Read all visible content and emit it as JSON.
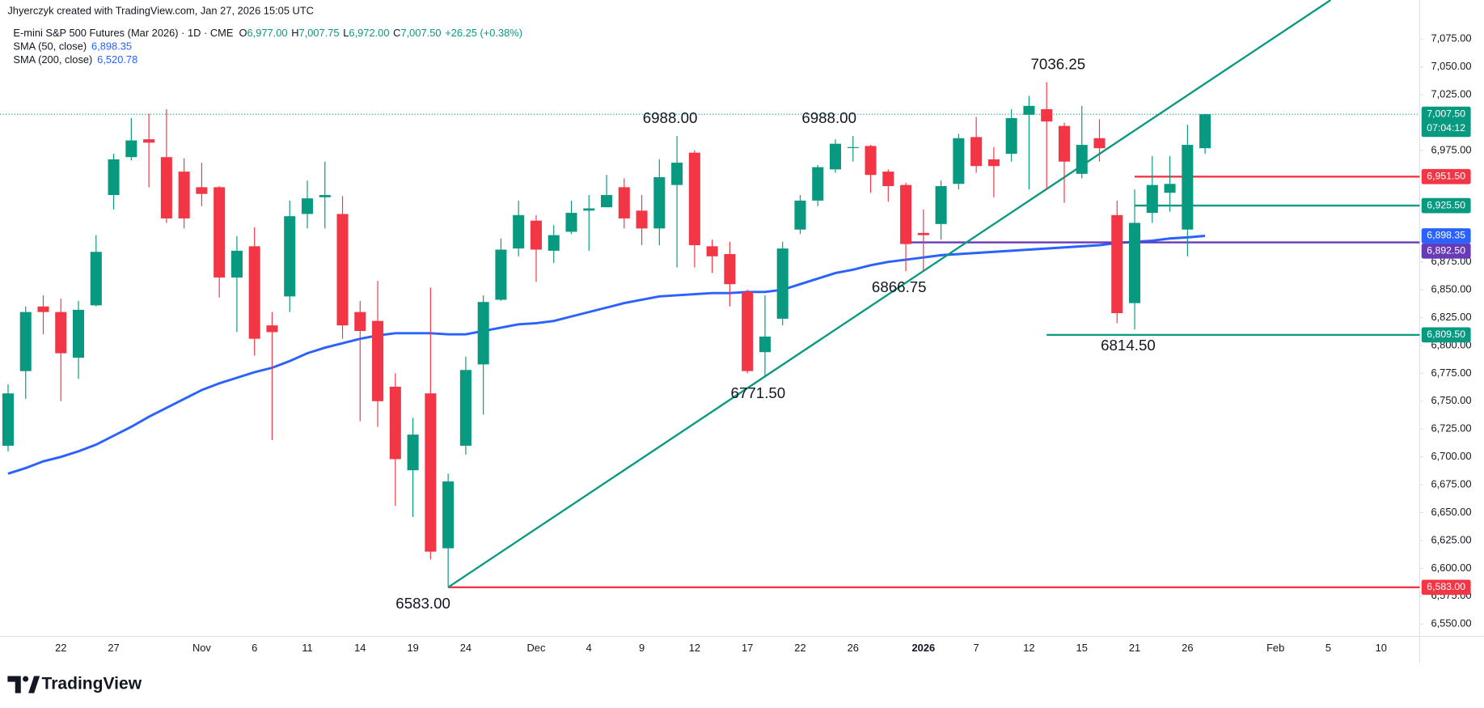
{
  "credit": "Jhyerczyk created with TradingView.com, Jan 27, 2026 15:05 UTC",
  "brand": "TradingView",
  "chart_data": {
    "type": "candlestick",
    "title": "E-mini S&P 500 Futures (Mar 2026) · 1D · CME",
    "ohlc_legend": [
      {
        "key": "O",
        "label": "6,977.00"
      },
      {
        "key": "H",
        "label": "7,007.75"
      },
      {
        "key": "L",
        "label": "6,972.00"
      },
      {
        "key": "C",
        "label": "7,007.50"
      }
    ],
    "change_label": "+26.25 (+0.38%)",
    "up_color": "#089981",
    "down_color": "#f23645",
    "categories": [
      null,
      null,
      null,
      "22",
      null,
      null,
      "27",
      null,
      null,
      null,
      null,
      "Nov",
      null,
      null,
      "6",
      null,
      null,
      "11",
      null,
      null,
      "14",
      null,
      null,
      "19",
      null,
      null,
      "24",
      null,
      null,
      null,
      "Dec",
      null,
      null,
      "4",
      null,
      null,
      "9",
      null,
      null,
      "12",
      null,
      null,
      "17",
      null,
      null,
      "22",
      null,
      null,
      "26",
      null,
      null,
      null,
      "2026",
      null,
      null,
      "7",
      null,
      null,
      "12",
      null,
      null,
      "15",
      null,
      null,
      "21",
      null,
      null,
      "26",
      null,
      null,
      null,
      null,
      "Feb",
      null,
      null,
      "5",
      null,
      null,
      "10"
    ],
    "open": [
      6710,
      6777,
      6835,
      6830,
      6789,
      6836,
      6935,
      6969,
      6985,
      6969,
      6956,
      6942,
      6942,
      6861,
      6889,
      6818,
      6844,
      6918,
      6933,
      6918,
      6830,
      6822,
      6763,
      6688,
      6757,
      6618,
      6710,
      6783,
      6841,
      6887,
      6912,
      6885,
      6902,
      6921,
      6924,
      6942,
      6921,
      6905,
      6944,
      6973,
      6889,
      6882,
      6848,
      6794,
      6824,
      6904,
      6930,
      6958,
      6978,
      6979,
      6956,
      6944,
      6901,
      6909,
      6945,
      6987,
      6967,
      6972,
      7007,
      7012,
      6997,
      6954,
      6986,
      6917,
      6838,
      6919,
      6937,
      6904,
      6977,
      null,
      null,
      null,
      null,
      null,
      null,
      null,
      null,
      null,
      null
    ],
    "high": [
      6765,
      6835,
      6845,
      6842,
      6840,
      6899,
      6972,
      7004,
      7008,
      7012,
      6968,
      6964,
      6943,
      6898,
      6906,
      6830,
      6930,
      6948,
      6965,
      6934,
      6840,
      6858,
      6775,
      6735,
      6852,
      6685,
      6790,
      6845,
      6896,
      6930,
      6917,
      6908,
      6930,
      6935,
      6953,
      6950,
      6935,
      6967,
      6988,
      6975,
      6895,
      6893,
      6850,
      6845,
      6893,
      6935,
      6962,
      6985,
      6988,
      6980,
      6958,
      6946,
      6922,
      6948,
      6990,
      7005,
      6978,
      7012,
      7024,
      7036.25,
      7000,
      7015,
      7003,
      6930,
      6940,
      6970,
      6970,
      6998,
      7007.75,
      null,
      null,
      null,
      null,
      null,
      null,
      null,
      null,
      null,
      null
    ],
    "low": [
      6705,
      6752,
      6810,
      6750,
      6770,
      6835,
      6922,
      6966,
      6942,
      6910,
      6905,
      6925,
      6843,
      6812,
      6791,
      6715,
      6830,
      6905,
      6905,
      6806,
      6732,
      6727,
      6656,
      6646,
      6608,
      6583,
      6702,
      6738,
      6840,
      6880,
      6857,
      6874,
      6900,
      6885,
      6925,
      6905,
      6890,
      6890,
      6870,
      6870,
      6865,
      6835,
      6775,
      6771.5,
      6818,
      6900,
      6925,
      6955,
      6965,
      6937,
      6929,
      6866.75,
      6867,
      6895,
      6940,
      6955,
      6933,
      6965,
      6940,
      6940,
      6928,
      6950,
      6965,
      6820,
      6814.5,
      6910,
      6920,
      6880,
      6972,
      null,
      null,
      null,
      null,
      null,
      null,
      null,
      null,
      null,
      null
    ],
    "close": [
      6757,
      6830,
      6830,
      6793,
      6832,
      6884,
      6967,
      6984,
      6982,
      6914,
      6914,
      6936,
      6861,
      6885,
      6806,
      6812,
      6916,
      6932,
      6935,
      6818,
      6813,
      6750,
      6698,
      6720,
      6615,
      6678,
      6778,
      6839,
      6886,
      6917,
      6886,
      6899,
      6919,
      6923,
      6935,
      6914,
      6905,
      6951,
      6964,
      6890,
      6880,
      6855,
      6777,
      6808,
      6887,
      6930,
      6960,
      6981,
      6978,
      6953,
      6943,
      6891,
      6899,
      6943,
      6986,
      6961,
      6961,
      7004,
      7015,
      7001,
      6965,
      6980,
      6977,
      6829,
      6910,
      6944,
      6945,
      6980,
      7007.5,
      null,
      null,
      null,
      null,
      null,
      null,
      null,
      null,
      null,
      null
    ],
    "indicators": [
      {
        "name": "SMA (50, close)",
        "color": "#2962ff",
        "value_label": "6,898.35",
        "values": [
          6685,
          6690,
          6696,
          6700,
          6705,
          6711,
          6719,
          6727,
          6736,
          6744,
          6752,
          6760,
          6766,
          6771,
          6776,
          6780,
          6786,
          6793,
          6798,
          6802,
          6806,
          6809,
          6811,
          6811,
          6811,
          6810,
          6810,
          6813,
          6816,
          6819,
          6820,
          6822,
          6826,
          6830,
          6834,
          6838,
          6841,
          6844,
          6845,
          6846,
          6847,
          6847,
          6848,
          6848,
          6850,
          6855,
          6860,
          6865,
          6868,
          6872,
          6875,
          6877,
          6879,
          6881,
          6882,
          6883,
          6884,
          6885,
          6886,
          6887,
          6888,
          6889,
          6890,
          6892,
          6893,
          6894,
          6896,
          6897,
          6898.35,
          null,
          null,
          null,
          null,
          null,
          null,
          null,
          null,
          null,
          null
        ]
      },
      {
        "name": "SMA (200, close)",
        "color": "#2962ff",
        "value_label": "6,520.78"
      }
    ],
    "ylim": [
      6539,
      7110
    ],
    "yticks": [
      {
        "value": 7075,
        "label": "7,075.00"
      },
      {
        "value": 7050,
        "label": "7,050.00"
      },
      {
        "value": 7025,
        "label": "7,025.00"
      },
      {
        "value": 6975,
        "label": "6,975.00"
      },
      {
        "value": 6875,
        "label": "6,875.00"
      },
      {
        "value": 6850,
        "label": "6,850.00"
      },
      {
        "value": 6825,
        "label": "6,825.00"
      },
      {
        "value": 6800,
        "label": "6,800.00"
      },
      {
        "value": 6775,
        "label": "6,775.00"
      },
      {
        "value": 6750,
        "label": "6,750.00"
      },
      {
        "value": 6725,
        "label": "6,725.00"
      },
      {
        "value": 6700,
        "label": "6,700.00"
      },
      {
        "value": 6675,
        "label": "6,675.00"
      },
      {
        "value": 6650,
        "label": "6,650.00"
      },
      {
        "value": 6625,
        "label": "6,625.00"
      },
      {
        "value": 6600,
        "label": "6,600.00"
      },
      {
        "value": 6575,
        "label": "6,575.00"
      },
      {
        "value": 6550,
        "label": "6,550.00"
      }
    ],
    "grid": false,
    "last_price": {
      "value": 7007.5,
      "label": "7,007.50",
      "countdown": "07:04:12",
      "color": "#089981"
    },
    "levels": [
      {
        "value": 6951.5,
        "label": "6,951.50",
        "color": "#f23645",
        "from": 64
      },
      {
        "value": 6925.5,
        "label": "6,925.50",
        "color": "#089981",
        "from": 64
      },
      {
        "value": 6892.5,
        "label": "6,892.50",
        "color": "#673ab7",
        "from": 51
      },
      {
        "value": 6809.5,
        "label": "6,809.50",
        "color": "#089981",
        "from": 59
      },
      {
        "value": 6583,
        "label": "6,583.00",
        "color": "#f23645",
        "from": 25
      }
    ],
    "trendline": {
      "color": "#089981",
      "start": 25,
      "start_value": 6583,
      "end": 68,
      "end_value": 7035
    },
    "annotations": [
      {
        "value": 6988,
        "label": "6988.00"
      },
      {
        "value": 6988,
        "label": "6988.00"
      },
      {
        "value": 7036.25,
        "label": "7036.25"
      },
      {
        "value": 6866.75,
        "label": "6866.75"
      },
      {
        "value": 6771.5,
        "label": "6771.50"
      },
      {
        "value": 6814.5,
        "label": "6814.50"
      },
      {
        "value": 6583,
        "label": "6583.00"
      }
    ]
  }
}
